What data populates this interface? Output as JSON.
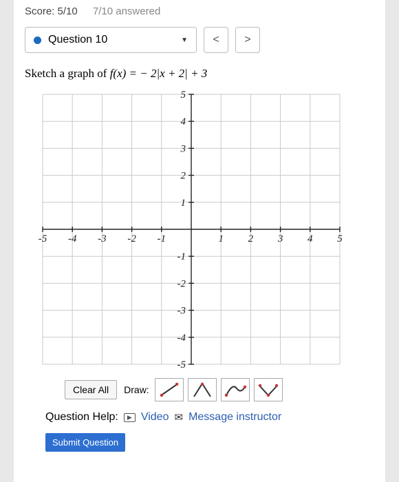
{
  "header": {
    "score_label": "Score: 5/10",
    "answered_label": "7/10 answered"
  },
  "nav": {
    "question_label": "Question 10",
    "prev": "<",
    "next": ">"
  },
  "prompt": {
    "prefix": "Sketch a graph of ",
    "fx": "f(x) = − 2|x + 2| + 3"
  },
  "graph": {
    "type": "grid",
    "xlim": [
      -5,
      5
    ],
    "ylim": [
      -5,
      5
    ],
    "tick_step": 1,
    "x_ticks": [
      -5,
      -4,
      -3,
      -2,
      -1,
      1,
      2,
      3,
      4,
      5
    ],
    "y_ticks": [
      -5,
      -4,
      -3,
      -2,
      -1,
      1,
      2,
      3,
      4,
      5
    ],
    "grid_color": "#c9c9c9",
    "axis_color": "#222222",
    "label_fontsize": 15
  },
  "toolbar": {
    "clear_label": "Clear All",
    "draw_label": "Draw:",
    "tools": [
      {
        "name": "line",
        "marker_color": "#c43737"
      },
      {
        "name": "abs-peak",
        "marker_color": "#c43737"
      },
      {
        "name": "curve",
        "marker_color": "#c43737"
      },
      {
        "name": "v-check",
        "marker_color": "#c43737"
      }
    ]
  },
  "help": {
    "label": "Question Help:",
    "video_label": "Video",
    "message_label": "Message instructor"
  },
  "submit_label": "Submit Question"
}
